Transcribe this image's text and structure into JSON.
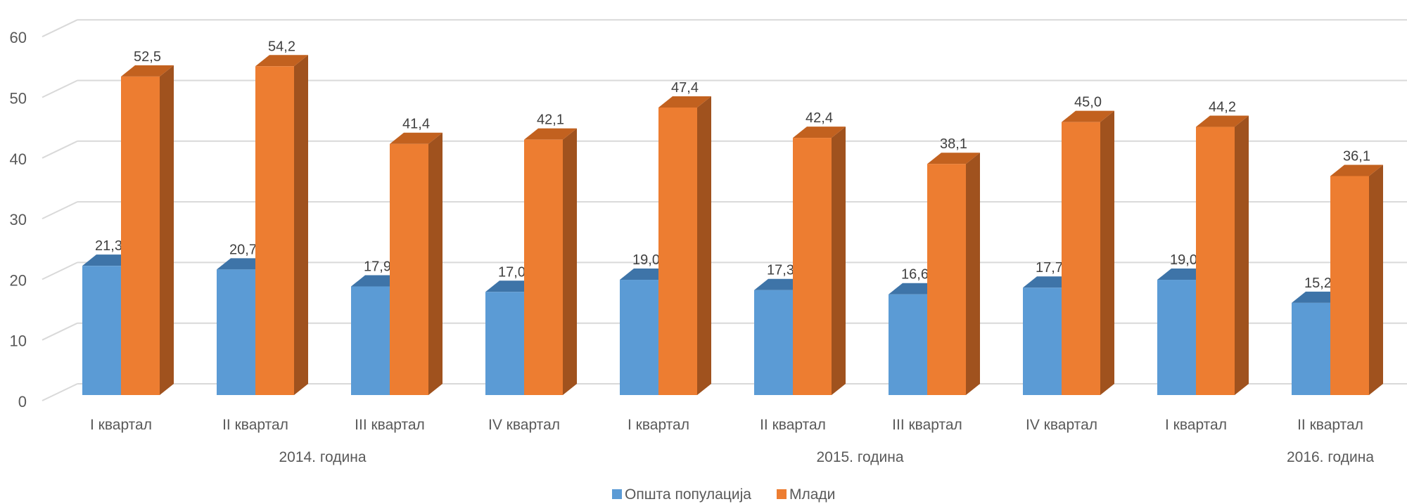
{
  "chart_data": {
    "type": "bar",
    "title": "",
    "xlabel": "",
    "ylabel": "",
    "ylim": [
      0,
      60
    ],
    "yticks": [
      "0",
      "10",
      "20",
      "30",
      "40",
      "50",
      "60"
    ],
    "grid": true,
    "legend_position": "bottom",
    "categories": [
      "I квартал",
      "II квартал",
      "III квартал",
      "IV квартал",
      "I квартал",
      "II квартал",
      "III квартал",
      "IV квартал",
      "I квартал",
      "II квартал"
    ],
    "groups": [
      {
        "label": "2014. година",
        "start": 0,
        "count": 4
      },
      {
        "label": "2015. година",
        "start": 4,
        "count": 4
      },
      {
        "label": "2016. година",
        "start": 8,
        "count": 2
      }
    ],
    "series": [
      {
        "name": "Општа популација",
        "color": "#5B9BD5",
        "side_color": "#41719C",
        "top_color": "#3E74A8",
        "values": [
          21.3,
          20.7,
          17.9,
          17.0,
          19.0,
          17.3,
          16.6,
          17.7,
          19.0,
          15.2
        ],
        "labels": [
          "21,3",
          "20,7",
          "17,9",
          "17,0",
          "19,0",
          "17,3",
          "16,6",
          "17,7",
          "19,0",
          "15,2"
        ]
      },
      {
        "name": "Млади",
        "color": "#ED7D31",
        "side_color": "#A0521E",
        "top_color": "#C2611F",
        "values": [
          52.5,
          54.2,
          41.4,
          42.1,
          47.4,
          42.4,
          38.1,
          45.0,
          44.2,
          36.1
        ],
        "labels": [
          "52,5",
          "54,2",
          "41,4",
          "42,1",
          "47,4",
          "42,4",
          "38,1",
          "45,0",
          "44,2",
          "36,1"
        ]
      }
    ]
  }
}
